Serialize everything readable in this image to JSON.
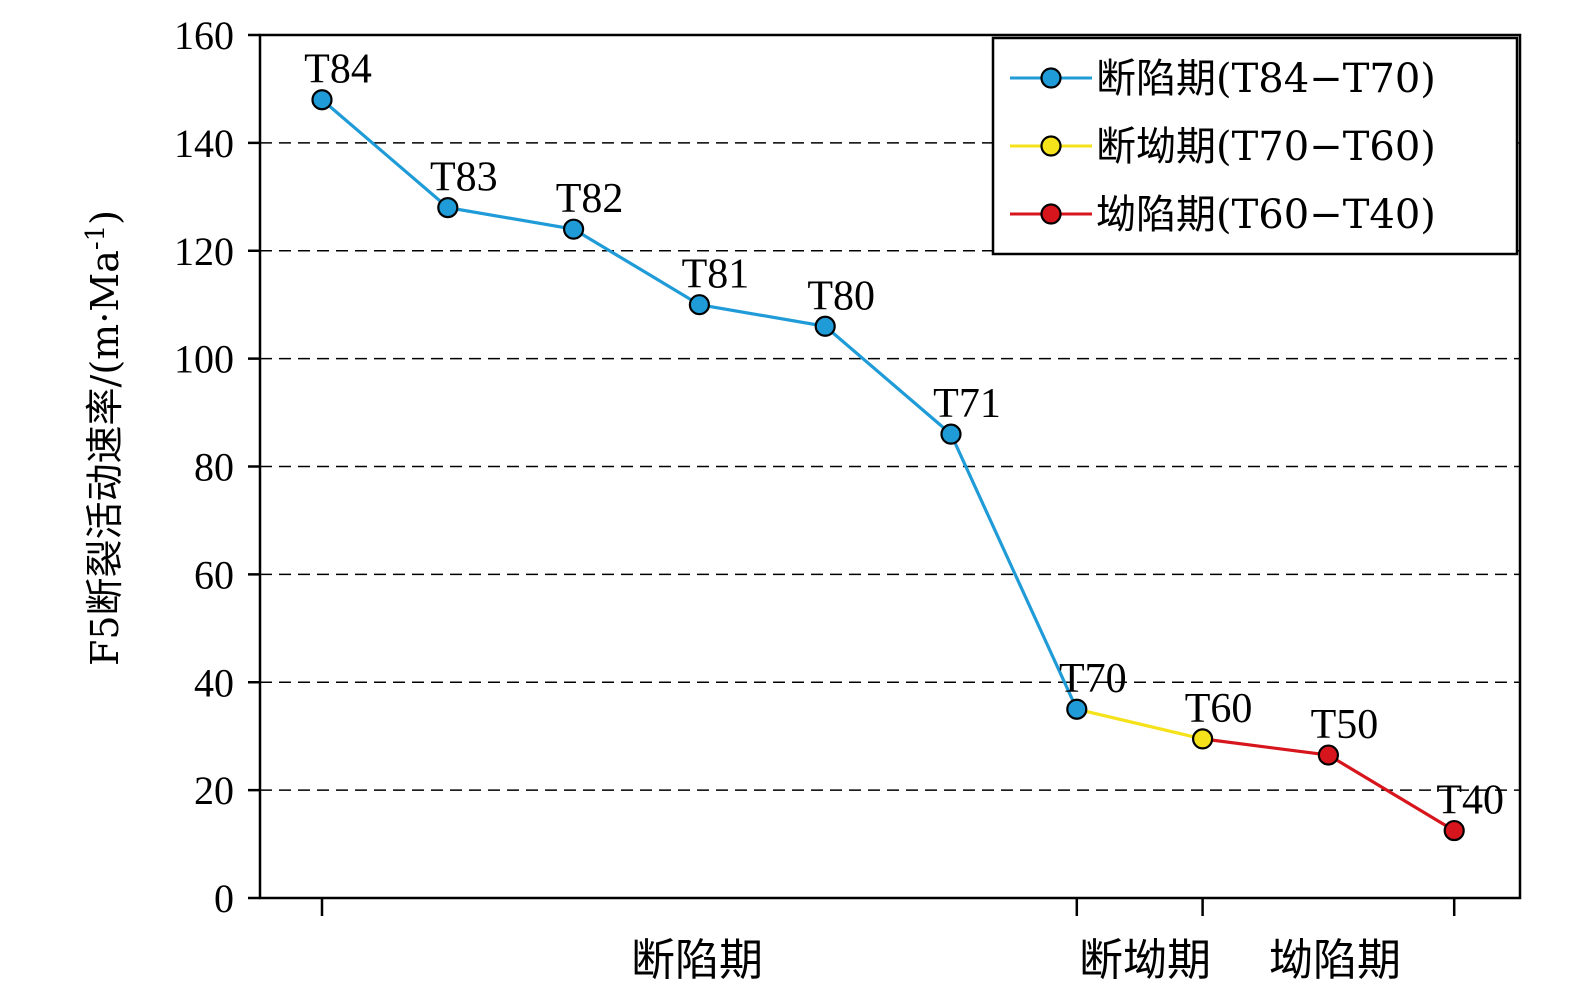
{
  "chart_data": {
    "type": "line",
    "ylabel": "F5断裂活动速率/(m·Ma",
    "ylabel_sup": "-1",
    "ylabel_close": ")",
    "ylim": [
      0,
      160
    ],
    "yticks": [
      0,
      20,
      40,
      60,
      80,
      100,
      120,
      140,
      160
    ],
    "grid": "horizontal dashed",
    "legend_position": "top-right",
    "points": [
      {
        "label": "T84",
        "value": 148
      },
      {
        "label": "T83",
        "value": 128
      },
      {
        "label": "T82",
        "value": 124
      },
      {
        "label": "T81",
        "value": 110
      },
      {
        "label": "T80",
        "value": 106
      },
      {
        "label": "T71",
        "value": 86
      },
      {
        "label": "T70",
        "value": 35
      },
      {
        "label": "T60",
        "value": 29.5
      },
      {
        "label": "T50",
        "value": 26.5
      },
      {
        "label": "T40",
        "value": 12.5
      }
    ],
    "series": [
      {
        "name": "断陷期(T84−T70)",
        "color": "#1f9bd7",
        "marker_color": "#1f9bd7",
        "from": 0,
        "to": 6
      },
      {
        "name": "断坳期(T70−T60)",
        "color": "#f5e21b",
        "marker_color": "#f5e21b",
        "from": 6,
        "to": 7
      },
      {
        "name": "坳陷期(T60−T40)",
        "color": "#d7151c",
        "marker_color": "#d7151c",
        "from": 7,
        "to": 9
      }
    ],
    "phase_labels": [
      "断陷期",
      "断坳期",
      "坳陷期"
    ]
  }
}
